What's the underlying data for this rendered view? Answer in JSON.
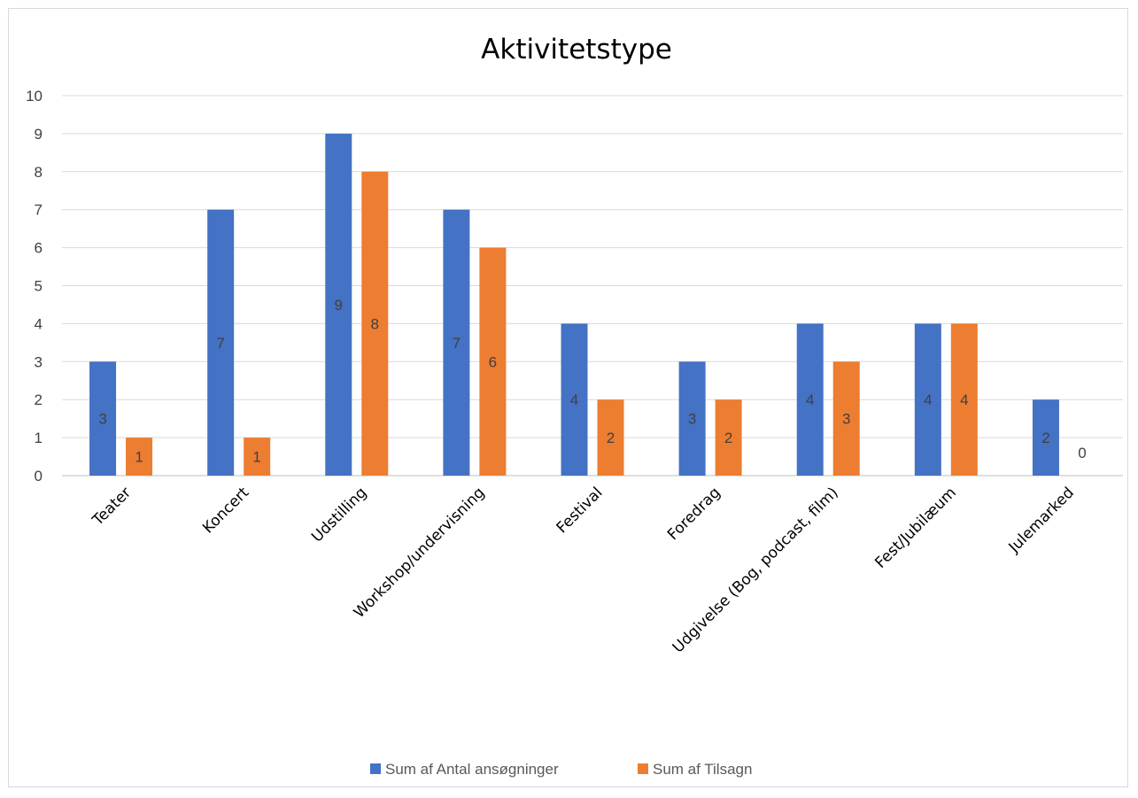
{
  "chart_data": {
    "type": "bar",
    "title": "Aktivitetstype",
    "categories": [
      "Teater",
      "Koncert",
      "Udstilling",
      "Workshop/undervisning",
      "Festival",
      "Foredrag",
      "Udgivelse (Bog, podcast, film)",
      "Fest/Jubilæum",
      "Julemarked"
    ],
    "series": [
      {
        "name": "Sum af Antal ansøgninger",
        "color": "#4472c4",
        "values": [
          3,
          7,
          9,
          7,
          4,
          3,
          4,
          4,
          2
        ]
      },
      {
        "name": "Sum af Tilsagn",
        "color": "#ed7d31",
        "values": [
          1,
          1,
          8,
          6,
          2,
          2,
          3,
          4,
          0
        ]
      }
    ],
    "y_ticks": [
      "0",
      "1",
      "2",
      "3",
      "4",
      "5",
      "6",
      "7",
      "8",
      "9",
      "10"
    ],
    "ylim": [
      0,
      10
    ],
    "grid": true,
    "legend_position": "bottom"
  }
}
